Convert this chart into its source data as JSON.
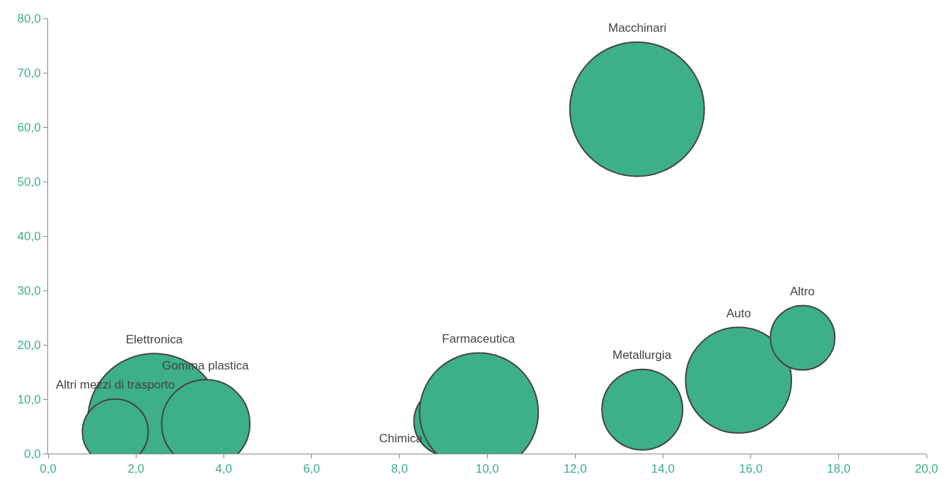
{
  "chart_data": {
    "type": "bubble",
    "relative": false,
    "x": [
      2.42,
      1.53,
      3.59,
      9.11,
      9.81,
      13.53,
      13.41,
      15.72,
      17.18
    ],
    "values": [
      6.2,
      4.0,
      5.5,
      5.9,
      7.6,
      8.1,
      63.3,
      13.5,
      21.3
    ],
    "sizes": [
      0.98,
      0.24,
      0.43,
      0.26,
      0.78,
      0.36,
      1.0,
      0.62,
      0.23
    ],
    "color": "#3daf8a",
    "xlim": [
      0,
      20
    ],
    "xticks": [
      {
        "value": 0,
        "label": "0,0"
      },
      {
        "value": 2,
        "label": "2,0"
      },
      {
        "value": 4,
        "label": "4,0"
      },
      {
        "value": 6,
        "label": "6,0"
      },
      {
        "value": 8,
        "label": "8,0"
      },
      {
        "value": 10,
        "label": "10,0"
      },
      {
        "value": 12,
        "label": "12,0"
      },
      {
        "value": 14,
        "label": "14,0"
      },
      {
        "value": 16,
        "label": "16,0"
      },
      {
        "value": 18,
        "label": "18,0"
      },
      {
        "value": 20,
        "label": "20,0"
      }
    ],
    "ylim": [
      0,
      80
    ],
    "yticks": [
      {
        "value": 0,
        "label": "0,0"
      },
      {
        "value": 10,
        "label": "10,0"
      },
      {
        "value": 20,
        "label": "20,0"
      },
      {
        "value": 30,
        "label": "30,0"
      },
      {
        "value": 40,
        "label": "40,0"
      },
      {
        "value": 50,
        "label": "50,0"
      },
      {
        "value": 60,
        "label": "60,0"
      },
      {
        "value": 70,
        "label": "70,0"
      },
      {
        "value": 80,
        "label": "80,0"
      }
    ],
    "annotations": [
      "Elettronica",
      "Altri mezzi di trasporto",
      "Gomma plastica",
      "Chimica",
      "Farmaceutica",
      "Metallurgia",
      "Macchinari",
      "Auto",
      "Altro"
    ]
  }
}
